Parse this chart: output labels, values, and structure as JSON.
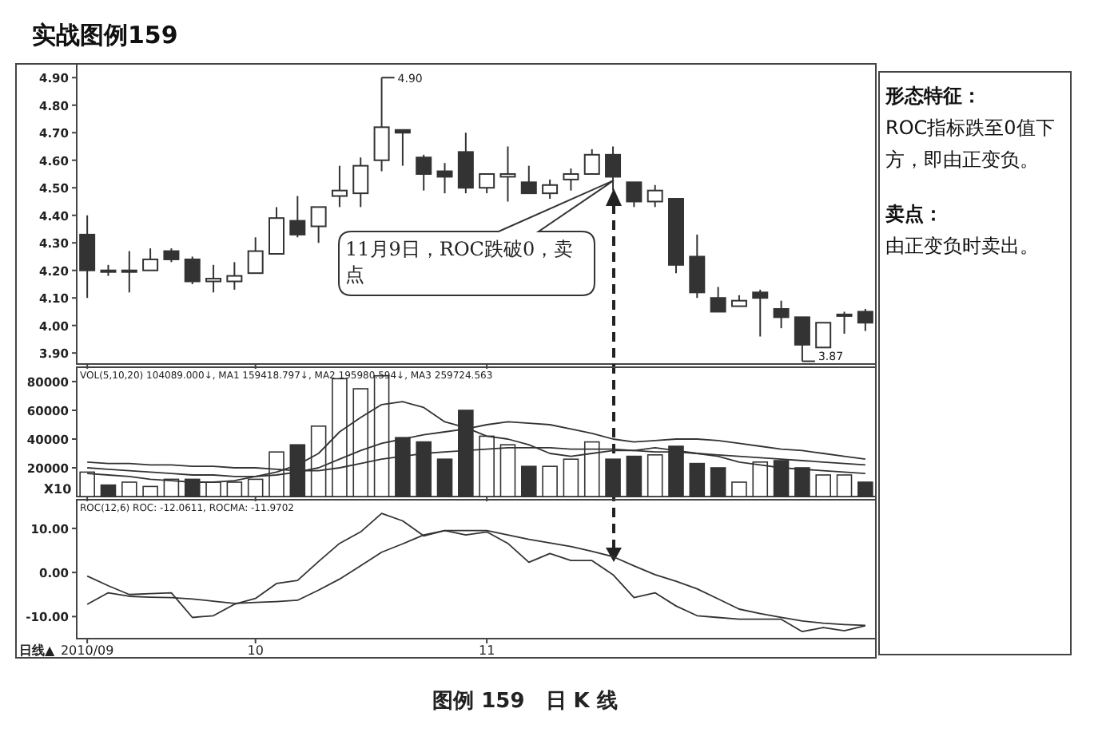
{
  "chart_data": [
    {
      "type": "candlestick",
      "title": "实战图例159",
      "categories": [
        "2010/09",
        null,
        null,
        null,
        null,
        null,
        null,
        null,
        "10",
        null,
        null,
        null,
        null,
        null,
        null,
        null,
        null,
        null,
        null,
        "11",
        null,
        null,
        null,
        null,
        null,
        null,
        null,
        null,
        null,
        null,
        null,
        null,
        null,
        null,
        null,
        null,
        null,
        null
      ],
      "ohlc": [
        [
          4.33,
          4.4,
          4.1,
          4.2
        ],
        [
          4.2,
          4.22,
          4.18,
          4.2
        ],
        [
          4.2,
          4.27,
          4.12,
          4.2
        ],
        [
          4.2,
          4.28,
          4.2,
          4.24
        ],
        [
          4.27,
          4.28,
          4.23,
          4.24
        ],
        [
          4.24,
          4.25,
          4.15,
          4.16
        ],
        [
          4.16,
          4.22,
          4.12,
          4.17
        ],
        [
          4.16,
          4.23,
          4.13,
          4.18
        ],
        [
          4.19,
          4.32,
          4.19,
          4.27
        ],
        [
          4.26,
          4.43,
          4.26,
          4.39
        ],
        [
          4.38,
          4.47,
          4.32,
          4.33
        ],
        [
          4.36,
          4.43,
          4.3,
          4.43
        ],
        [
          4.47,
          4.58,
          4.43,
          4.49
        ],
        [
          4.48,
          4.61,
          4.43,
          4.58
        ],
        [
          4.6,
          4.9,
          4.56,
          4.72
        ],
        [
          4.71,
          4.71,
          4.58,
          4.7
        ],
        [
          4.61,
          4.62,
          4.49,
          4.55
        ],
        [
          4.56,
          4.59,
          4.48,
          4.54
        ],
        [
          4.63,
          4.7,
          4.48,
          4.5
        ],
        [
          4.5,
          4.55,
          4.48,
          4.55
        ],
        [
          4.54,
          4.65,
          4.45,
          4.55
        ],
        [
          4.52,
          4.58,
          4.48,
          4.48
        ],
        [
          4.48,
          4.53,
          4.46,
          4.51
        ],
        [
          4.53,
          4.57,
          4.49,
          4.55
        ],
        [
          4.55,
          4.64,
          4.55,
          4.62
        ],
        [
          4.62,
          4.65,
          4.49,
          4.54
        ],
        [
          4.52,
          4.52,
          4.43,
          4.45
        ],
        [
          4.45,
          4.51,
          4.43,
          4.49
        ],
        [
          4.46,
          4.46,
          4.19,
          4.22
        ],
        [
          4.25,
          4.33,
          4.1,
          4.12
        ],
        [
          4.1,
          4.14,
          4.05,
          4.05
        ],
        [
          4.07,
          4.11,
          4.07,
          4.09
        ],
        [
          4.12,
          4.13,
          3.96,
          4.1
        ],
        [
          4.06,
          4.09,
          3.99,
          4.03
        ],
        [
          4.03,
          4.03,
          3.87,
          3.93
        ],
        [
          3.92,
          4.01,
          3.92,
          4.01
        ],
        [
          4.04,
          4.05,
          3.97,
          4.04
        ],
        [
          4.05,
          4.06,
          3.98,
          4.01
        ]
      ],
      "ylim": [
        3.86,
        4.95
      ],
      "yticks": [
        {
          "value": 3.9,
          "label": "3.90"
        },
        {
          "value": 4.0,
          "label": "4.00"
        },
        {
          "value": 4.1,
          "label": "4.10"
        },
        {
          "value": 4.2,
          "label": "4.20"
        },
        {
          "value": 4.3,
          "label": "4.30"
        },
        {
          "value": 4.4,
          "label": "4.40"
        },
        {
          "value": 4.5,
          "label": "4.50"
        },
        {
          "value": 4.6,
          "label": "4.60"
        },
        {
          "value": 4.7,
          "label": "4.70"
        },
        {
          "value": 4.8,
          "label": "4.80"
        },
        {
          "value": 4.9,
          "label": "4.90"
        }
      ],
      "tick_labels": "y",
      "annotations": [
        "11月9日，ROC跌破0，卖点",
        "4.90",
        "3.87",
        "形态特征：",
        "ROC指标跌至0值下方，即由正变负。",
        "卖点：",
        "由正变负时卖出。"
      ]
    },
    {
      "type": "bar",
      "categories": [
        "2010/09",
        null,
        null,
        null,
        null,
        null,
        null,
        null,
        "10",
        null,
        null,
        null,
        null,
        null,
        null,
        null,
        null,
        null,
        null,
        "11",
        null,
        null,
        null,
        null,
        null,
        null,
        null,
        null,
        null,
        null,
        null,
        null,
        null,
        null,
        null,
        null,
        null,
        null
      ],
      "series": [
        {
          "values": [
            17000,
            8000,
            10000,
            7000,
            12000,
            12000,
            10000,
            10000,
            12000,
            31000,
            36000,
            49000,
            82000,
            75000,
            84000,
            41000,
            38000,
            26000,
            60000,
            42000,
            36000,
            21000,
            21000,
            26000,
            38000,
            26000,
            28000,
            29000,
            35000,
            23000,
            20000,
            10000,
            24000,
            25000,
            20000,
            15000,
            15000,
            10000
          ],
          "colors": [
            "#ffffff",
            "#333333",
            "#ffffff",
            "#ffffff",
            "#ffffff",
            "#333333",
            "#ffffff",
            "#ffffff",
            "#ffffff",
            "#ffffff",
            "#333333",
            "#ffffff",
            "#ffffff",
            "#ffffff",
            "#ffffff",
            "#333333",
            "#333333",
            "#333333",
            "#333333",
            "#ffffff",
            "#ffffff",
            "#333333",
            "#ffffff",
            "#ffffff",
            "#ffffff",
            "#333333",
            "#333333",
            "#ffffff",
            "#333333",
            "#333333",
            "#333333",
            "#ffffff",
            "#ffffff",
            "#333333",
            "#333333",
            "#ffffff",
            "#ffffff",
            "#333333"
          ]
        },
        {
          "type": "line",
          "color": "#333333",
          "values": [
            16000,
            15000,
            14000,
            12000,
            11000,
            10000,
            10000,
            11000,
            14000,
            17000,
            22000,
            30000,
            45000,
            55000,
            64000,
            66000,
            62000,
            52000,
            48000,
            42000,
            40000,
            36000,
            30000,
            28000,
            30000,
            32000,
            32000,
            34000,
            32000,
            30000,
            28000,
            24000,
            22000,
            20000,
            19000,
            18000,
            17000,
            16000
          ]
        },
        {
          "type": "line",
          "color": "#333333",
          "values": [
            20000,
            19000,
            18000,
            17000,
            16000,
            15000,
            15000,
            14000,
            14000,
            15000,
            17000,
            20000,
            26000,
            32000,
            37000,
            40000,
            43000,
            45000,
            47000,
            50000,
            52000,
            51000,
            50000,
            47000,
            44000,
            40000,
            38000,
            39000,
            40000,
            40000,
            39000,
            37000,
            35000,
            33000,
            32000,
            30000,
            28000,
            26000
          ]
        },
        {
          "type": "line",
          "color": "#333333",
          "values": [
            24000,
            23000,
            23000,
            22000,
            22000,
            21000,
            21000,
            20000,
            20000,
            19000,
            18000,
            18000,
            20000,
            23000,
            26000,
            28000,
            30000,
            31000,
            32000,
            33000,
            34000,
            34000,
            34000,
            33000,
            33000,
            33000,
            32000,
            31000,
            31000,
            30000,
            29000,
            28000,
            27000,
            26000,
            25000,
            24000,
            23000,
            22000
          ]
        }
      ],
      "ylim": [
        0,
        90000
      ],
      "yticks": [
        20000,
        40000,
        60000,
        80000
      ],
      "tick_labels": "y",
      "annotations": [
        "VOL(5,10,20) 104089.000↓, MA1 159418.797↓, MA2 195980.594↓, MA3 259724.563",
        "X10"
      ]
    },
    {
      "type": "line",
      "categories": [
        "2010/09",
        null,
        null,
        null,
        null,
        null,
        null,
        null,
        "10",
        null,
        null,
        null,
        null,
        null,
        null,
        null,
        null,
        null,
        null,
        "11",
        null,
        null,
        null,
        null,
        null,
        null,
        null,
        null,
        null,
        null,
        null,
        null,
        null,
        null,
        null,
        null,
        null,
        null
      ],
      "series": [
        {
          "color": "#333333",
          "values": [
            -0.8,
            -3,
            -5,
            -4.8,
            -4.6,
            -10.2,
            -9.8,
            -7.2,
            -5.9,
            -2.5,
            -1.8,
            2.5,
            6.6,
            9.2,
            13.4,
            11.7,
            8.3,
            9.5,
            8.5,
            9.2,
            6.6,
            2.3,
            4.3,
            2.7,
            2.7,
            -0.5,
            -5.7,
            -4.6,
            -7.6,
            -9.8,
            -10.2,
            -10.6,
            -10.6,
            -10.6,
            -13.4,
            -12.5,
            -13.2,
            -12.1
          ]
        },
        {
          "color": "#333333",
          "values": [
            -7.2,
            -4.6,
            -5.4,
            -5.6,
            -5.7,
            -6,
            -6.5,
            -7,
            -6.8,
            -6.6,
            -6.3,
            -4,
            -1.5,
            1.5,
            4.6,
            6.5,
            8.5,
            9.5,
            9.5,
            9.5,
            8.5,
            7.5,
            6.7,
            5.9,
            4.8,
            3.6,
            1.5,
            -0.5,
            -2,
            -3.7,
            -6,
            -8.3,
            -9.3,
            -10.2,
            -11,
            -11.5,
            -11.8,
            -12
          ]
        }
      ],
      "ylim": [
        -15,
        16.5
      ],
      "yticks": [
        {
          "value": -10,
          "label": "-10.00"
        },
        {
          "value": 0,
          "label": "0.00"
        },
        {
          "value": 10,
          "label": "10.00"
        }
      ],
      "annotations": [
        "ROC(12,6) ROC: -12.0611, ROCMA: -11.9702",
        "日线▲",
        "图例 159　日 K 线"
      ]
    }
  ]
}
